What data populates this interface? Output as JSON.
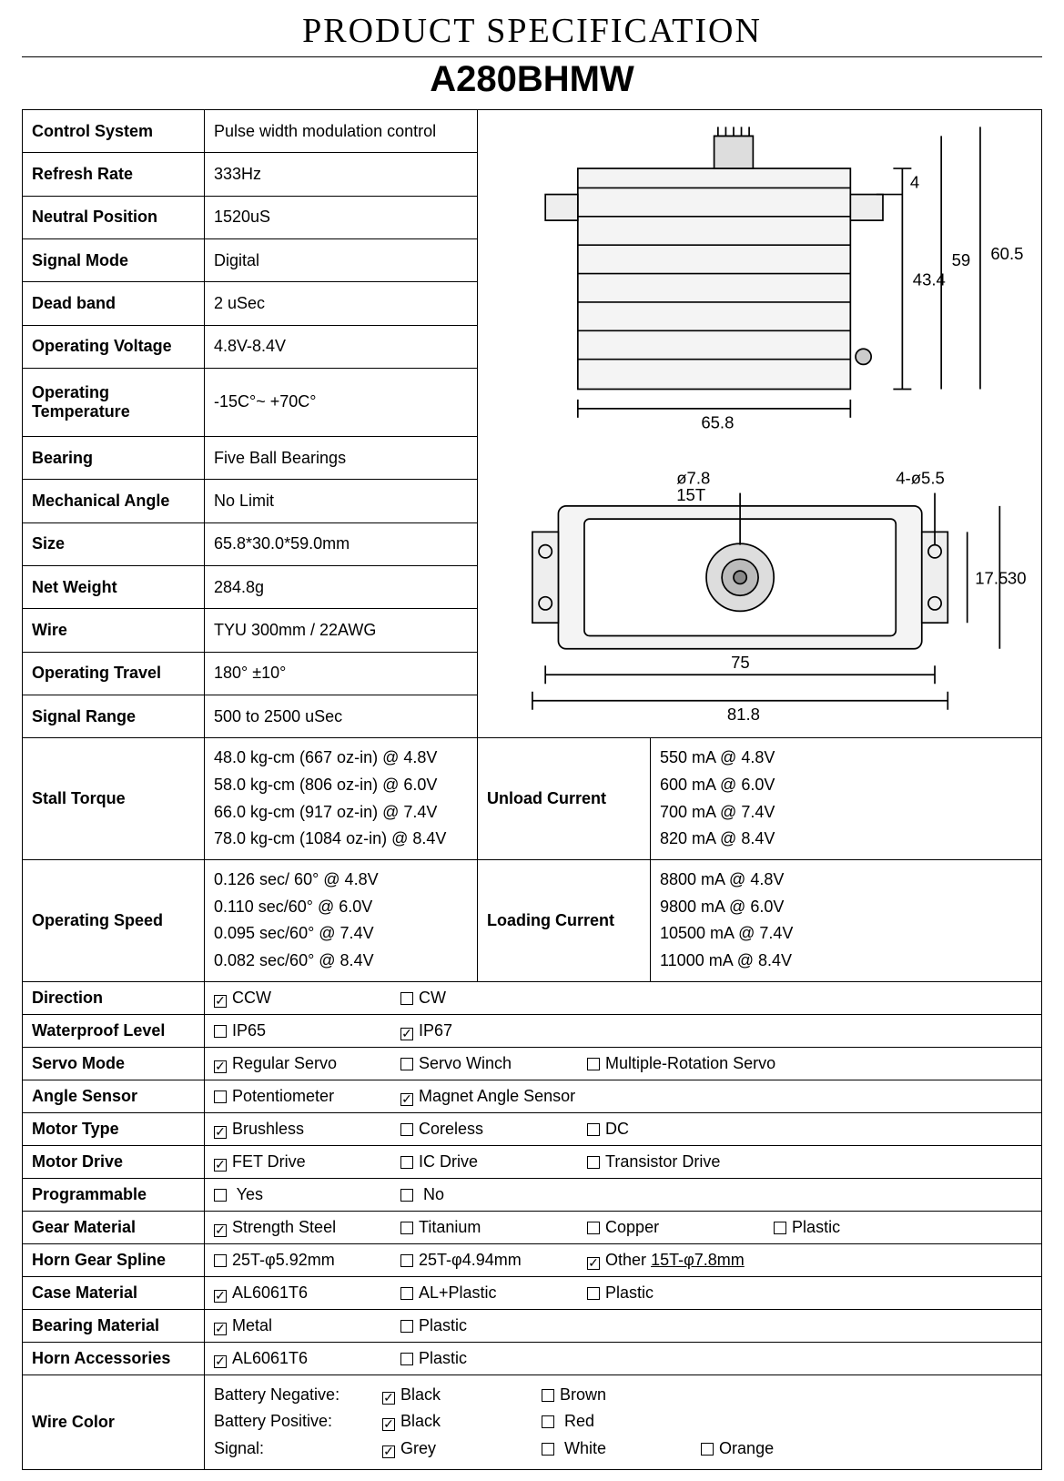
{
  "header": {
    "title": "PRODUCT SPECIFICATION",
    "model": "A280BHMW"
  },
  "specs": [
    {
      "label": "Control System",
      "value": "Pulse width modulation control"
    },
    {
      "label": "Refresh Rate",
      "value": "333Hz"
    },
    {
      "label": "Neutral Position",
      "value": "1520uS"
    },
    {
      "label": "Signal Mode",
      "value": "Digital"
    },
    {
      "label": "Dead band",
      "value": "2 uSec"
    },
    {
      "label": "Operating Voltage",
      "value": "4.8V-8.4V"
    },
    {
      "label": "Operating Temperature",
      "value": "-15C°~ +70C°"
    },
    {
      "label": "Bearing",
      "value": "Five Ball Bearings"
    },
    {
      "label": "Mechanical Angle",
      "value": "No Limit"
    },
    {
      "label": "Size",
      "value": "65.8*30.0*59.0mm"
    },
    {
      "label": "Net Weight",
      "value": "284.8g"
    },
    {
      "label": "Wire",
      "value": "TYU 300mm / 22AWG"
    },
    {
      "label": "Operating Travel",
      "value": "180° ±10°"
    },
    {
      "label": "Signal Range",
      "value": "500 to 2500 uSec"
    }
  ],
  "diagram": {
    "dims": {
      "w": "65.8",
      "h": "43.4",
      "total_h": "59",
      "outer_h": "60.5",
      "tab": "4",
      "spline": "ø7.8",
      "spline_t": "15T",
      "holes": "4-ø5.5",
      "mount_w": "75",
      "outer_w": "81.8",
      "side": "17.5",
      "side_out": "30"
    }
  },
  "stall_torque": {
    "label": "Stall Torque",
    "lines": [
      "48.0 kg-cm (667 oz-in)   @ 4.8V",
      "58.0 kg-cm (806 oz-in)   @ 6.0V",
      "66.0 kg-cm (917 oz-in)   @ 7.4V",
      "78.0 kg-cm (1084 oz-in)  @ 8.4V"
    ]
  },
  "unload_current": {
    "label": "Unload Current",
    "lines": [
      "550 mA @ 4.8V",
      "600 mA @ 6.0V",
      "700 mA @ 7.4V",
      "820 mA @ 8.4V"
    ]
  },
  "operating_speed": {
    "label": "Operating Speed",
    "lines": [
      "0.126 sec/ 60° @ 4.8V",
      "0.110 sec/60° @ 6.0V",
      "0.095 sec/60° @ 7.4V",
      "0.082 sec/60° @ 8.4V"
    ]
  },
  "loading_current": {
    "label": "Loading Current",
    "lines": [
      "8800 mA @ 4.8V",
      "9800 mA @ 6.0V",
      "10500 mA @ 7.4V",
      "11000 mA @ 8.4V"
    ]
  },
  "options": {
    "direction": {
      "label": "Direction",
      "items": [
        {
          "t": "CCW",
          "c": true
        },
        {
          "t": "CW",
          "c": false
        }
      ]
    },
    "waterproof": {
      "label": "Waterproof   Level",
      "items": [
        {
          "t": "IP65",
          "c": false
        },
        {
          "t": "IP67",
          "c": true
        }
      ]
    },
    "servo_mode": {
      "label": "Servo Mode",
      "items": [
        {
          "t": "Regular Servo",
          "c": true
        },
        {
          "t": "Servo Winch",
          "c": false
        },
        {
          "t": "Multiple-Rotation Servo",
          "c": false
        }
      ]
    },
    "angle_sensor": {
      "label": "Angle Sensor",
      "items": [
        {
          "t": "Potentiometer",
          "c": false
        },
        {
          "t": "Magnet Angle Sensor",
          "c": true
        }
      ]
    },
    "motor_type": {
      "label": "Motor Type",
      "items": [
        {
          "t": "Brushless",
          "c": true
        },
        {
          "t": "Coreless",
          "c": false
        },
        {
          "t": "DC",
          "c": false
        }
      ]
    },
    "motor_drive": {
      "label": "Motor Drive",
      "items": [
        {
          "t": "FET Drive",
          "c": true
        },
        {
          "t": "IC Drive",
          "c": false
        },
        {
          "t": "Transistor Drive",
          "c": false
        }
      ]
    },
    "programmable": {
      "label": "Programmable",
      "items": [
        {
          "t": " Yes",
          "c": false
        },
        {
          "t": " No",
          "c": false
        }
      ]
    },
    "gear_material": {
      "label": "Gear Material",
      "items": [
        {
          "t": "Strength Steel",
          "c": true
        },
        {
          "t": "Titanium",
          "c": false
        },
        {
          "t": "Copper",
          "c": false
        },
        {
          "t": "Plastic",
          "c": false
        }
      ]
    },
    "horn_spline": {
      "label": "Horn Gear Spline",
      "items": [
        {
          "t": "25T-φ5.92mm",
          "c": false
        },
        {
          "t": "25T-φ4.94mm",
          "c": false
        },
        {
          "t": "Other ",
          "c": true,
          "u": "15T-φ7.8mm"
        }
      ]
    },
    "case_material": {
      "label": "Case Material",
      "items": [
        {
          "t": "AL6061T6",
          "c": true
        },
        {
          "t": "AL+Plastic",
          "c": false
        },
        {
          "t": "Plastic",
          "c": false
        }
      ]
    },
    "bearing_mat": {
      "label": "Bearing Material",
      "items": [
        {
          "t": "Metal",
          "c": true
        },
        {
          "t": "Plastic",
          "c": false
        }
      ]
    },
    "horn_acc": {
      "label": "Horn Accessories",
      "items": [
        {
          "t": "AL6061T6",
          "c": true
        },
        {
          "t": "Plastic",
          "c": false
        }
      ]
    }
  },
  "wire_color": {
    "label": "Wire Color",
    "rows": [
      {
        "name": "Battery Negative:",
        "opts": [
          {
            "t": "Black",
            "c": true
          },
          {
            "t": "Brown",
            "c": false
          }
        ]
      },
      {
        "name": "Battery Positive:",
        "opts": [
          {
            "t": "Black",
            "c": true
          },
          {
            "t": " Red",
            "c": false
          }
        ]
      },
      {
        "name": "Signal:",
        "opts": [
          {
            "t": "Grey",
            "c": true
          },
          {
            "t": " White",
            "c": false
          },
          {
            "t": "Orange",
            "c": false
          }
        ]
      }
    ]
  }
}
